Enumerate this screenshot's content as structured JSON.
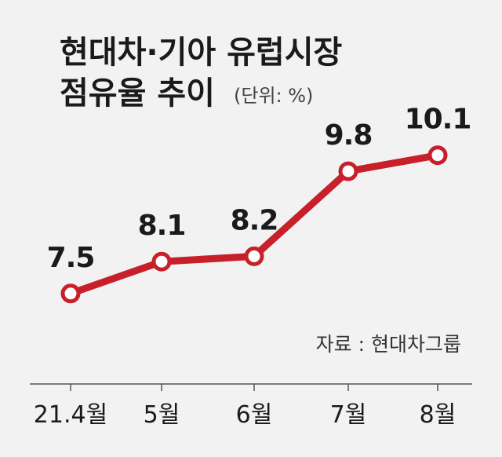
{
  "chart_data": {
    "type": "line",
    "title_lines": [
      "현대차·기아 유럽시장",
      "점유율 추이"
    ],
    "unit_note": "(단위: %)",
    "categories": [
      "21.4월",
      "5월",
      "6월",
      "7월",
      "8월"
    ],
    "series": [
      {
        "values": [
          7.5,
          8.1,
          8.2,
          9.8,
          10.1
        ]
      }
    ],
    "ylim": [
      5.8,
      11.1
    ],
    "grid": false,
    "source": "자료 : 현대차그룹",
    "colors": {
      "line": "#c8202a",
      "background": "#f2f2f2",
      "axis": "#555555"
    }
  }
}
